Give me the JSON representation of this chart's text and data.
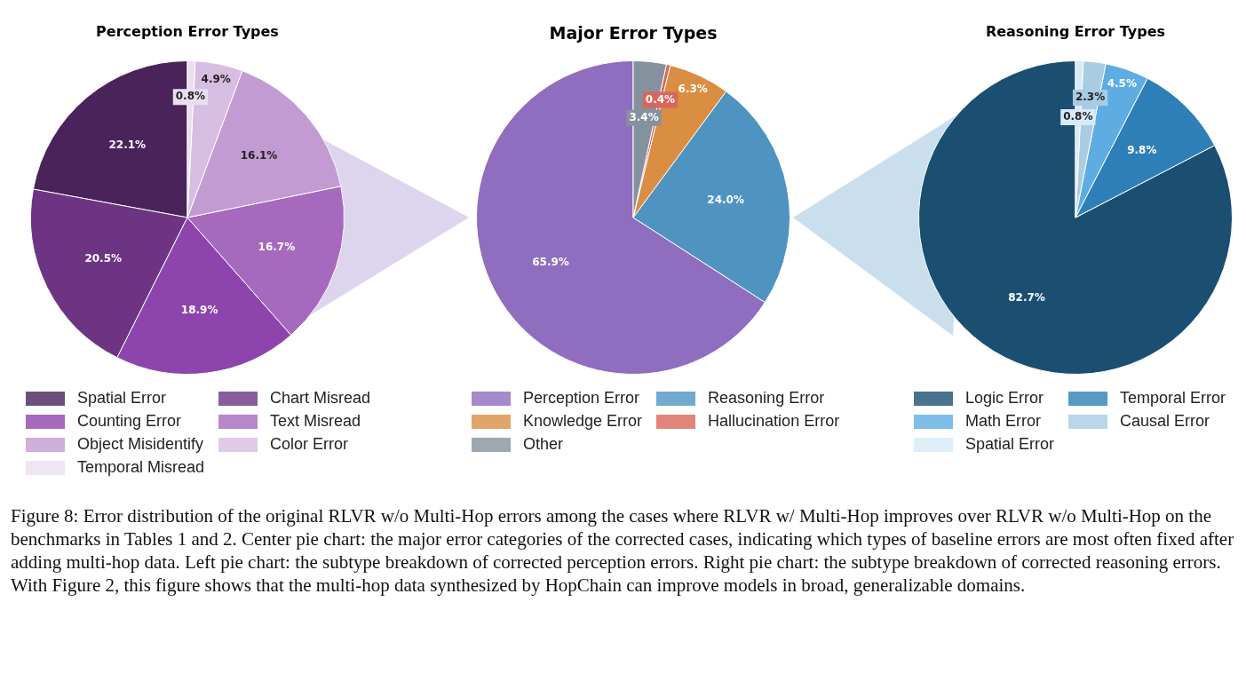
{
  "chart_data": [
    {
      "type": "pie",
      "title": "Perception Error Types",
      "categories": [
        "Spatial Error",
        "Chart Misread",
        "Counting Error",
        "Text Misread",
        "Object Misidentify",
        "Color Error",
        "Temporal Misread"
      ],
      "values": [
        22.1,
        20.5,
        18.9,
        16.7,
        16.1,
        4.9,
        0.8
      ],
      "colors": [
        "#4a235a",
        "#6c3483",
        "#8e44ad",
        "#a569bd",
        "#c39bd3",
        "#d7bde2",
        "#ebdef0"
      ],
      "value_labels": [
        "22.1%",
        "20.5%",
        "18.9%",
        "16.7%",
        "16.1%",
        "4.9%",
        "0.8%"
      ],
      "legend": "bottom",
      "annotations": [
        "Figure 8: Error distribution of the original RLVR w/o Multi-Hop errors among the cases where RLVR w/ Multi-Hop improves over RLVR w/o Multi-Hop on the benchmarks in Tables 1 and 2. Center pie chart: the major error categories of the corrected cases, indicating which types of baseline errors are most often fixed after adding multi-hop data. Left pie chart: the subtype breakdown of corrected perception errors. Right pie chart: the subtype breakdown of corrected reasoning errors. With Figure 2, this figure shows that the multi-hop data synthesized by HopChain can improve models in broad, generalizable domains."
      ]
    },
    {
      "type": "pie",
      "title": "Major Error Types",
      "categories": [
        "Perception Error",
        "Reasoning Error",
        "Knowledge Error",
        "Hallucination Error",
        "Other"
      ],
      "values": [
        65.9,
        24.0,
        6.3,
        0.4,
        3.4
      ],
      "colors": [
        "#8f6dbf",
        "#4f93c1",
        "#d98e43",
        "#d9665b",
        "#85929e"
      ],
      "value_labels": [
        "65.9%",
        "24.0%",
        "6.3%",
        "0.4%",
        "3.4%"
      ],
      "legend": "bottom"
    },
    {
      "type": "pie",
      "title": "Reasoning Error Types",
      "categories": [
        "Logic Error",
        "Temporal Error",
        "Math Error",
        "Causal Error",
        "Spatial Error"
      ],
      "values": [
        82.7,
        9.8,
        4.5,
        2.3,
        0.8
      ],
      "colors": [
        "#1b4f72",
        "#2e7fb8",
        "#5dade2",
        "#a9cce3",
        "#d6eaf8"
      ],
      "value_labels": [
        "82.7%",
        "9.8%",
        "4.5%",
        "2.3%",
        "0.8%"
      ],
      "legend": "bottom"
    }
  ]
}
